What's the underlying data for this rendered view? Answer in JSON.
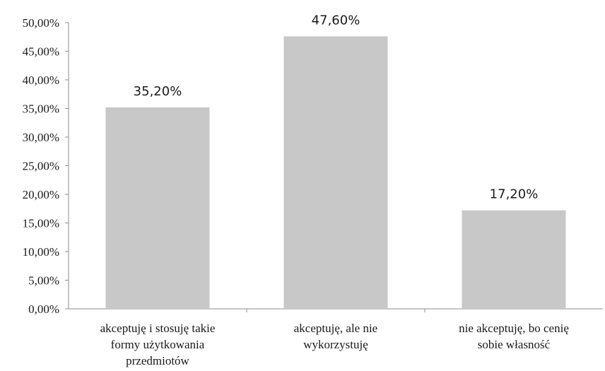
{
  "chart_data": {
    "type": "bar",
    "categories": [
      [
        "akceptuję i stosuję takie",
        "formy użytkowania",
        "przedmiotów"
      ],
      [
        "akceptuję, ale nie",
        "wykorzystuję"
      ],
      [
        "nie akceptuję, bo cenię",
        "sobie własność"
      ]
    ],
    "values": [
      35.2,
      47.6,
      17.2
    ],
    "data_labels": [
      "35,20%",
      "47,60%",
      "17,20%"
    ],
    "y_ticks": [
      0,
      5,
      10,
      15,
      20,
      25,
      30,
      35,
      40,
      45,
      50
    ],
    "y_tick_labels": [
      "0,00%",
      "5,00%",
      "10,00%",
      "15,00%",
      "20,00%",
      "25,00%",
      "30,00%",
      "35,00%",
      "40,00%",
      "45,00%",
      "50,00%"
    ],
    "ylim": [
      0,
      50
    ],
    "grid": false,
    "legend": "none",
    "bar_color": "#c8c8c8",
    "axis_color": "#8c8c8c"
  }
}
